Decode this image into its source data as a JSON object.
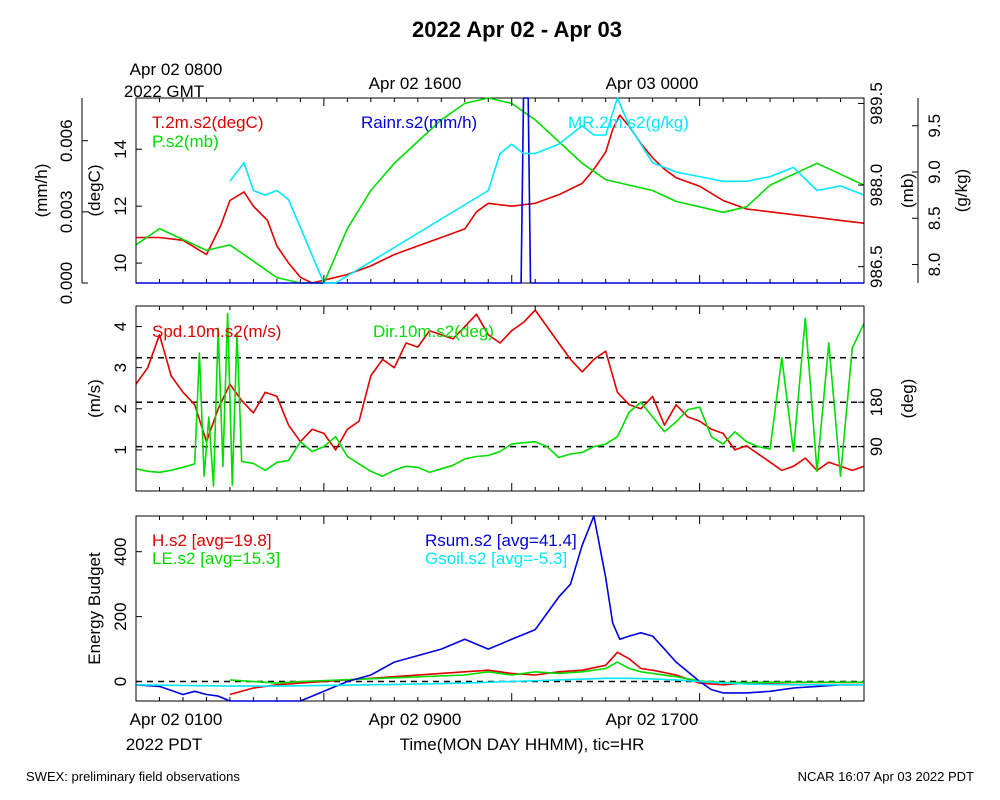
{
  "title": "2022 Apr 02 - Apr 03",
  "top_time_labels": [
    {
      "line1": "Apr 02 0800",
      "line2": "2022 GMT"
    },
    {
      "line1": "Apr 02 1600",
      "line2": ""
    },
    {
      "line1": "Apr 03 0000",
      "line2": ""
    }
  ],
  "bottom_time_labels": [
    {
      "line1": "Apr 02 0100",
      "line2": "2022 PDT"
    },
    {
      "line1": "Apr 02 0900",
      "line2": ""
    },
    {
      "line1": "Apr 02 1700",
      "line2": ""
    }
  ],
  "x_axis_title": "Time(MON DAY HHMM), tic=HR",
  "footer_left": "SWEX: preliminary field observations",
  "footer_right": "NCAR 16:07 Apr 03 2022 PDT",
  "colors": {
    "red": "#e00000",
    "green": "#00dd00",
    "blue": "#0000e0",
    "cyan": "#00e8ff",
    "black": "#000000"
  },
  "chart_data": [
    {
      "type": "line",
      "panel": "met",
      "x_range_hours": [
        0,
        31
      ],
      "legend": [
        {
          "text": "T.2m.s2(degC)",
          "color": "#e00000"
        },
        {
          "text": "P.s2(mb)",
          "color": "#00dd00"
        },
        {
          "text": "Rainr.s2(mm/h)",
          "color": "#0000e0"
        },
        {
          "text": "MR.2m.s2(g/kg)",
          "color": "#00e8ff"
        }
      ],
      "axes": [
        {
          "label": "(mm/h)",
          "side": "left",
          "range": [
            0,
            0.0078
          ],
          "ticks": [
            "0.000",
            "0.003",
            "0.006"
          ],
          "tick_values": [
            0,
            0.003,
            0.006
          ]
        },
        {
          "label": "(degC)",
          "side": "left",
          "range": [
            9.3,
            15.8
          ],
          "ticks": [
            "10",
            "12",
            "14"
          ],
          "tick_values": [
            10,
            12,
            14
          ]
        },
        {
          "label": "(mb)",
          "side": "right",
          "range": [
            986.2,
            989.6
          ],
          "ticks": [
            "986.5",
            "988.0",
            "989.5"
          ],
          "tick_values": [
            986.5,
            988.0,
            989.5
          ]
        },
        {
          "label": "(g/kg)",
          "side": "right",
          "range": [
            7.8,
            9.8
          ],
          "ticks": [
            "8.0",
            "8.5",
            "9.0",
            "9.5"
          ],
          "tick_values": [
            8.0,
            8.5,
            9.0,
            9.5
          ]
        }
      ],
      "series": [
        {
          "name": "T.2m.s2",
          "axis": 1,
          "color": "#e00000",
          "x": [
            0,
            1,
            2,
            3,
            3.6,
            4,
            4.6,
            5,
            5.6,
            6,
            6.5,
            7,
            7.5,
            8,
            9,
            10,
            11,
            12,
            13,
            14,
            14.5,
            15,
            16,
            17,
            18,
            19,
            19.5,
            20,
            20.3,
            20.6,
            21,
            21.5,
            22,
            22.5,
            23,
            24,
            25,
            26,
            27,
            28,
            29,
            30,
            31
          ],
          "y": [
            10.9,
            10.9,
            10.8,
            10.3,
            11.3,
            12.2,
            12.5,
            12.0,
            11.5,
            10.6,
            10.0,
            9.5,
            9.3,
            9.4,
            9.6,
            9.9,
            10.3,
            10.6,
            10.9,
            11.2,
            11.8,
            12.1,
            12.0,
            12.1,
            12.4,
            12.8,
            13.3,
            13.9,
            14.7,
            15.2,
            14.8,
            14.2,
            13.7,
            13.3,
            13.0,
            12.7,
            12.2,
            11.9,
            11.8,
            11.7,
            11.6,
            11.5,
            11.4
          ]
        },
        {
          "name": "P.s2",
          "axis": 2,
          "color": "#00dd00",
          "x": [
            0,
            1,
            2,
            3,
            4,
            5,
            6,
            7,
            8,
            9,
            10,
            11,
            12,
            13,
            14,
            15,
            16,
            17,
            18,
            19,
            20,
            21,
            22,
            23,
            24,
            25,
            26,
            27,
            28,
            29,
            30,
            31
          ],
          "y": [
            986.9,
            987.2,
            987.0,
            986.8,
            986.9,
            986.6,
            986.3,
            986.2,
            986.2,
            987.2,
            987.9,
            988.4,
            988.8,
            989.2,
            989.5,
            989.6,
            989.5,
            989.2,
            988.8,
            988.4,
            988.1,
            988.0,
            987.9,
            987.7,
            987.6,
            987.5,
            987.6,
            988.0,
            988.2,
            988.4,
            988.2,
            988.0
          ]
        },
        {
          "name": "Rainr.s2",
          "axis": 0,
          "color": "#0000e0",
          "x": [
            0,
            16.4,
            16.5,
            16.7,
            16.8,
            31
          ],
          "y": [
            0,
            0,
            0.0078,
            0.0078,
            0,
            0
          ]
        },
        {
          "name": "MR.2m.s2",
          "axis": 3,
          "color": "#00e8ff",
          "x": [
            4,
            4.6,
            5,
            5.5,
            6,
            6.5,
            7,
            7.5,
            8,
            8.5,
            15,
            15.5,
            16,
            16.5,
            17,
            18,
            19,
            19.5,
            20,
            20.5,
            21,
            21.5,
            22,
            22.5,
            23,
            24,
            25,
            26,
            27,
            28,
            29,
            30,
            31
          ],
          "y": [
            8.9,
            9.1,
            8.8,
            8.75,
            8.8,
            8.7,
            8.4,
            8.1,
            7.8,
            7.8,
            8.8,
            9.2,
            9.3,
            9.2,
            9.2,
            9.3,
            9.5,
            9.4,
            9.4,
            9.8,
            9.5,
            9.3,
            9.1,
            9.05,
            9.0,
            8.95,
            8.9,
            8.9,
            8.95,
            9.05,
            8.8,
            8.85,
            8.75
          ]
        }
      ]
    },
    {
      "type": "line",
      "panel": "wind",
      "x_range_hours": [
        0,
        31
      ],
      "legend": [
        {
          "text": "Spd.10m.s2(m/s)",
          "color": "#e00000"
        },
        {
          "text": "Dir.10m.s2(deg)",
          "color": "#00dd00"
        }
      ],
      "axes": [
        {
          "label": "(m/s)",
          "side": "left",
          "range": [
            0,
            4.5
          ],
          "ticks": [
            "1",
            "2",
            "3",
            "4"
          ],
          "tick_values": [
            1,
            2,
            3,
            4
          ]
        },
        {
          "label": "(deg)",
          "side": "right",
          "range": [
            0,
            375
          ],
          "ticks": [
            "90",
            "180"
          ],
          "tick_values": [
            90,
            180
          ]
        }
      ],
      "reference_lines_deg": [
        90,
        180,
        270
      ],
      "series": [
        {
          "name": "Spd.10m.s2",
          "axis": 0,
          "color": "#e00000",
          "x": [
            0,
            0.5,
            1,
            1.5,
            2,
            2.5,
            3,
            3.5,
            4,
            4.5,
            5,
            5.5,
            6,
            6.5,
            7,
            7.5,
            8,
            8.5,
            9,
            9.5,
            10,
            10.5,
            11,
            11.5,
            12,
            12.5,
            13,
            13.5,
            14,
            14.5,
            15,
            15.5,
            16,
            16.5,
            17,
            17.5,
            18,
            18.5,
            19,
            19.5,
            20,
            20.5,
            21,
            21.5,
            22,
            22.5,
            23,
            23.5,
            24,
            24.5,
            25,
            25.5,
            26,
            26.5,
            27,
            27.5,
            28,
            28.5,
            29,
            29.5,
            30,
            30.5,
            31
          ],
          "y": [
            2.6,
            3.0,
            3.8,
            2.8,
            2.4,
            2.1,
            1.2,
            2.0,
            2.6,
            2.2,
            1.9,
            2.4,
            2.3,
            1.6,
            1.2,
            1.5,
            1.4,
            1.0,
            1.5,
            1.7,
            2.8,
            3.2,
            3.0,
            3.6,
            3.5,
            3.9,
            3.8,
            3.7,
            4.0,
            4.3,
            3.8,
            3.6,
            3.9,
            4.1,
            4.4,
            4.0,
            3.6,
            3.2,
            2.9,
            3.2,
            3.4,
            2.4,
            2.1,
            2.0,
            2.3,
            1.6,
            2.1,
            1.8,
            1.7,
            1.5,
            1.4,
            1.0,
            1.1,
            0.9,
            0.7,
            0.5,
            0.6,
            0.8,
            0.5,
            0.7,
            0.6,
            0.5,
            0.6
          ]
        },
        {
          "name": "Dir.10m.s2",
          "axis": 1,
          "color": "#00dd00",
          "x": [
            0,
            0.5,
            1,
            1.5,
            2,
            2.5,
            2.7,
            2.9,
            3.1,
            3.3,
            3.5,
            3.7,
            3.9,
            4.1,
            4.3,
            4.5,
            5,
            5.5,
            6,
            6.5,
            7,
            7.5,
            8,
            8.5,
            9,
            9.5,
            10,
            10.5,
            11,
            11.5,
            12,
            12.5,
            13,
            13.5,
            14,
            14.5,
            15,
            15.5,
            16,
            16.5,
            17,
            17.5,
            18,
            18.5,
            19,
            19.5,
            20,
            20.5,
            21,
            21.5,
            22,
            22.5,
            23,
            23.5,
            24,
            24.5,
            25,
            25.5,
            26,
            26.5,
            27,
            27.5,
            28,
            28.5,
            29,
            29.5,
            30,
            30.5,
            31
          ],
          "y": [
            45,
            40,
            38,
            42,
            48,
            55,
            280,
            30,
            150,
            10,
            330,
            50,
            360,
            12,
            320,
            60,
            56,
            42,
            58,
            62,
            100,
            80,
            90,
            110,
            70,
            55,
            40,
            30,
            42,
            50,
            48,
            38,
            45,
            52,
            65,
            70,
            72,
            80,
            95,
            98,
            100,
            90,
            68,
            75,
            78,
            90,
            95,
            110,
            160,
            180,
            150,
            120,
            140,
            165,
            170,
            110,
            95,
            120,
            100,
            90,
            85,
            270,
            80,
            350,
            40,
            300,
            30,
            290,
            340
          ]
        }
      ]
    },
    {
      "type": "line",
      "panel": "energy",
      "x_range_hours": [
        0,
        31
      ],
      "legend": [
        {
          "text": "H.s2 [avg=19.8]",
          "color": "#e00000"
        },
        {
          "text": "LE.s2 [avg=15.3]",
          "color": "#00dd00"
        },
        {
          "text": "Rsum.s2 [avg=41.4]",
          "color": "#0000e0"
        },
        {
          "text": "Gsoil.s2 [avg=-5.3]",
          "color": "#00e8ff"
        }
      ],
      "axes": [
        {
          "label": "Energy Budget",
          "side": "left",
          "range": [
            -60,
            510
          ],
          "ticks": [
            "0",
            "200",
            "400"
          ],
          "tick_values": [
            0,
            200,
            400
          ]
        }
      ],
      "reference_lines": [
        0
      ],
      "series": [
        {
          "name": "H.s2",
          "color": "#e00000",
          "x": [
            4,
            5,
            6,
            7,
            14,
            15,
            16,
            17,
            18,
            19,
            20,
            20.5,
            21,
            21.5,
            22,
            23,
            24,
            25,
            26,
            27,
            28,
            29,
            30,
            31
          ],
          "y": [
            -40,
            -20,
            -10,
            -5,
            30,
            35,
            25,
            20,
            30,
            35,
            50,
            90,
            70,
            40,
            35,
            20,
            -5,
            -10,
            -5,
            -5,
            -3,
            -3,
            -3,
            -3
          ]
        },
        {
          "name": "LE.s2",
          "axis": 0,
          "color": "#00dd00",
          "x": [
            4,
            5,
            6,
            7,
            14,
            15,
            16,
            17,
            18,
            19,
            20,
            20.5,
            21,
            21.5,
            22,
            23,
            24,
            25,
            26,
            27,
            28,
            29,
            30,
            31
          ],
          "y": [
            5,
            0,
            -5,
            0,
            20,
            30,
            20,
            30,
            25,
            30,
            40,
            60,
            40,
            30,
            25,
            15,
            2,
            -3,
            -3,
            -2,
            -2,
            -2,
            -2,
            -2
          ]
        },
        {
          "name": "Rsum.s2",
          "axis": 0,
          "color": "#0000e0",
          "x": [
            0,
            1,
            2,
            2.5,
            3,
            3.5,
            4,
            4.5,
            5,
            6,
            7,
            8,
            9,
            10,
            11,
            12,
            13,
            14,
            15,
            16,
            17,
            18,
            18.5,
            19,
            19.5,
            20,
            20.3,
            20.6,
            21,
            21.5,
            22,
            22.5,
            23,
            23.5,
            24,
            24.5,
            25,
            26,
            27,
            28,
            29,
            30,
            31
          ],
          "y": [
            -10,
            -15,
            -40,
            -30,
            -40,
            -45,
            -60,
            -65,
            -60,
            -60,
            -60,
            -30,
            0,
            20,
            60,
            80,
            100,
            130,
            100,
            130,
            160,
            260,
            300,
            420,
            510,
            320,
            180,
            130,
            140,
            150,
            140,
            100,
            60,
            30,
            0,
            -25,
            -35,
            -35,
            -30,
            -20,
            -15,
            -10,
            -10
          ]
        },
        {
          "name": "Gsoil.s2",
          "axis": 0,
          "color": "#00e8ff",
          "x": [
            0,
            2,
            4,
            6,
            8,
            10,
            12,
            14,
            16,
            18,
            20,
            21,
            22,
            23,
            24,
            25,
            26,
            28,
            30,
            31
          ],
          "y": [
            -10,
            -12,
            -14,
            -14,
            -12,
            -10,
            -8,
            -5,
            0,
            5,
            10,
            10,
            8,
            5,
            0,
            -5,
            -8,
            -10,
            -10,
            -10
          ]
        }
      ]
    }
  ]
}
